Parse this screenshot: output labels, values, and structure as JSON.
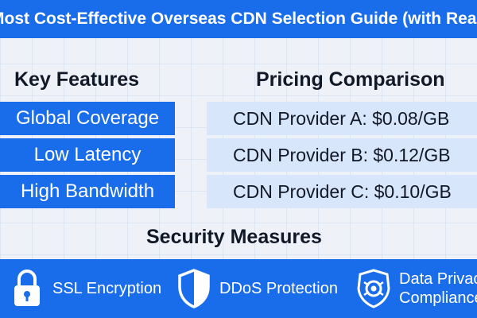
{
  "header": {
    "title": "Most Cost-Effective Overseas CDN Selection Guide (with Real Q"
  },
  "features": {
    "heading": "Key Features",
    "items": [
      "Global Coverage",
      "Low Latency",
      "High Bandwidth"
    ]
  },
  "pricing": {
    "heading": "Pricing Comparison",
    "items": [
      "CDN Provider A: $0.08/GB",
      "CDN Provider B: $0.12/GB",
      "CDN Provider C: $0.10/GB"
    ]
  },
  "security": {
    "heading": "Security Measures",
    "items": [
      {
        "label": "SSL Encryption",
        "icon": "lock-icon"
      },
      {
        "label": "DDoS Protection",
        "icon": "shield-icon"
      },
      {
        "label_line1": "Data Privacy",
        "label_line2": "Compliance",
        "icon": "privacy-shield-icon"
      }
    ]
  },
  "colors": {
    "accent": "#1a6dea",
    "price_row": "#d7e6fb",
    "background": "#eef2f8"
  }
}
